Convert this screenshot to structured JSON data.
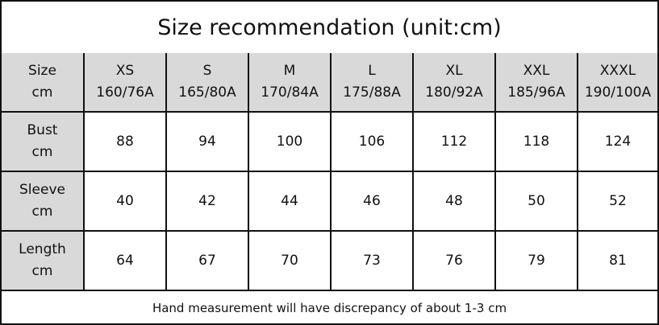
{
  "title": "Size recommendation (unit:cm)",
  "table": {
    "header": [
      [
        "Size",
        "cm"
      ],
      [
        "XS",
        "160/76A"
      ],
      [
        "S",
        "165/80A"
      ],
      [
        "M",
        "170/84A"
      ],
      [
        "L",
        "175/88A"
      ],
      [
        "XL",
        "180/92A"
      ],
      [
        "XXL",
        "185/96A"
      ],
      [
        "XXXL",
        "190/100A"
      ]
    ],
    "rows": [
      {
        "label": [
          "Bust",
          "cm"
        ],
        "values": [
          88,
          94,
          100,
          106,
          112,
          118,
          124
        ]
      },
      {
        "label": [
          "Sleeve",
          "cm"
        ],
        "values": [
          40,
          42,
          44,
          46,
          48,
          50,
          52
        ]
      },
      {
        "label": [
          "Length",
          "cm"
        ],
        "values": [
          64,
          67,
          70,
          73,
          76,
          79,
          81
        ]
      }
    ]
  },
  "footnote": "Hand measurement will have discrepancy of about 1-3 cm"
}
